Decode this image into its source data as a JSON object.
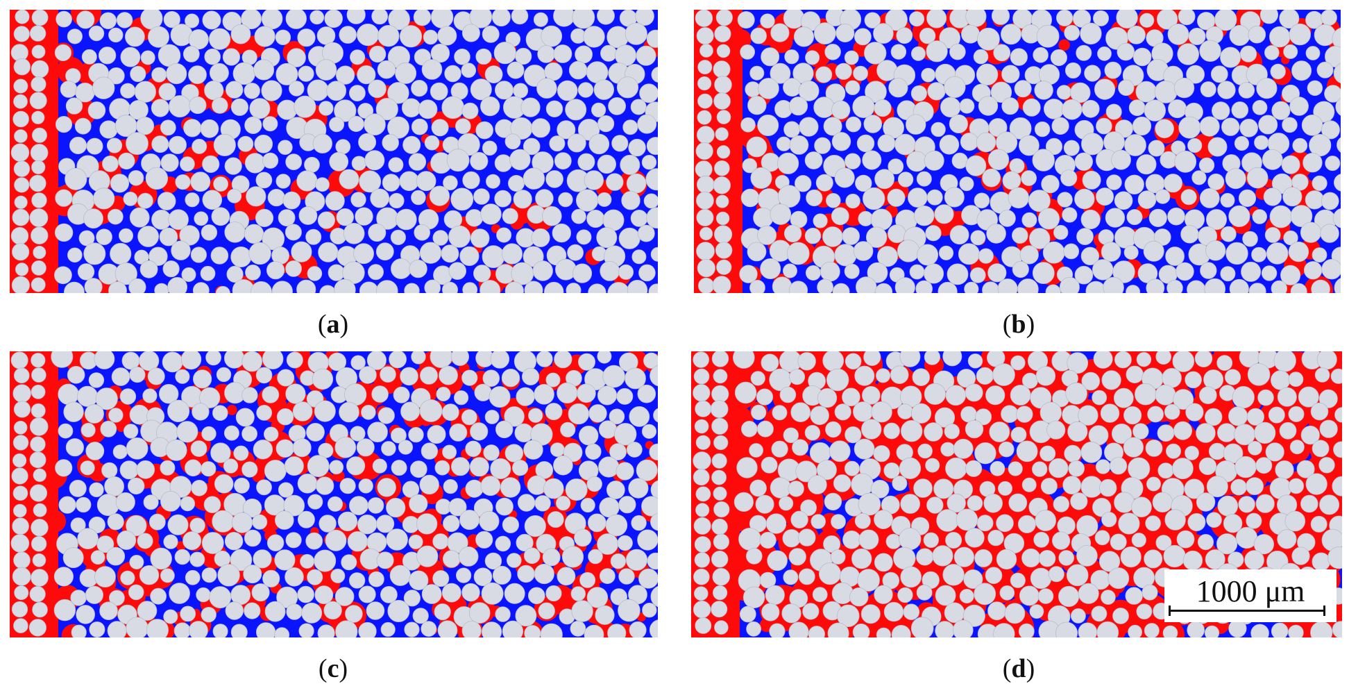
{
  "figure": {
    "panels": [
      {
        "id": "a",
        "caption_open": "(",
        "caption_letter": "a",
        "caption_close": ")",
        "red_fraction": 0.08
      },
      {
        "id": "b",
        "caption_open": "(",
        "caption_letter": "b",
        "caption_close": ")",
        "red_fraction": 0.2
      },
      {
        "id": "c",
        "caption_open": "(",
        "caption_letter": "c",
        "caption_close": ")",
        "red_fraction": 0.45
      },
      {
        "id": "d",
        "caption_open": "(",
        "caption_letter": "d",
        "caption_close": ")",
        "red_fraction": 0.8
      }
    ],
    "scale_bar": {
      "label": "1000 μm"
    },
    "colors": {
      "matrix_blue": "#0a14ff",
      "fluid_red": "#ff0a0a",
      "particle_gray": "#d9dbe4",
      "particle_outline": "#b8bccb"
    }
  }
}
